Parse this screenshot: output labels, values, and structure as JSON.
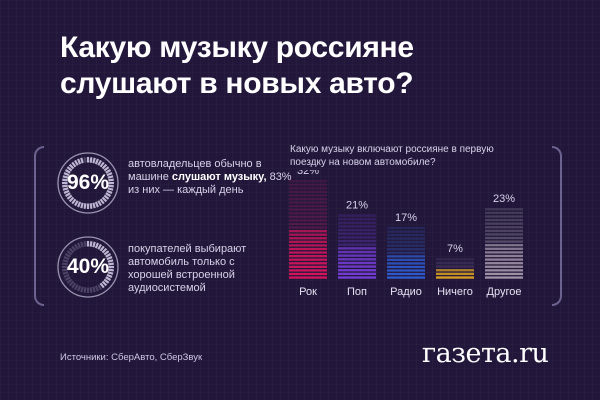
{
  "title": "Какую музыку россияне слушают в новых авто?",
  "stats": [
    {
      "value": "96%",
      "fill": 0.96,
      "text_pre": "автовладельцев обычно в машине ",
      "text_bold": "слушают музыку,",
      "text_post": " 83% из них — каждый день"
    },
    {
      "value": "40%",
      "fill": 0.4,
      "text_pre": "покупателей выбирают автомобиль только с хорошей встроенной аудиосистемой",
      "text_bold": "",
      "text_post": ""
    }
  ],
  "chart_question": "Какую музыку включают россияне в первую поездку на новом автомобиле?",
  "chart_data": {
    "type": "bar",
    "title": "Какую музыку включают россияне в первую поездку на новом автомобиле?",
    "categories": [
      "Рок",
      "Поп",
      "Радио",
      "Ничего",
      "Другое"
    ],
    "values": [
      32,
      21,
      17,
      7,
      23
    ],
    "value_labels": [
      "32%",
      "21%",
      "17%",
      "7%",
      "23%"
    ],
    "unit": "%",
    "ylim": [
      0,
      32
    ],
    "grid": false,
    "colors": [
      [
        "#e0145f",
        "#6b1a52"
      ],
      [
        "#7a3fe0",
        "#4a2a8c"
      ],
      [
        "#2e5fd8",
        "#2a3b86"
      ],
      [
        "#e0a422",
        "#4c3a6a"
      ],
      [
        "#a89aae",
        "#6e6480"
      ]
    ]
  },
  "sources": "Источники: СберАвто, СберЗвук",
  "logo": "газета.ru",
  "colors": {
    "background": "#22173a",
    "accent": "#e0145f",
    "ring": "#9a94b0"
  }
}
